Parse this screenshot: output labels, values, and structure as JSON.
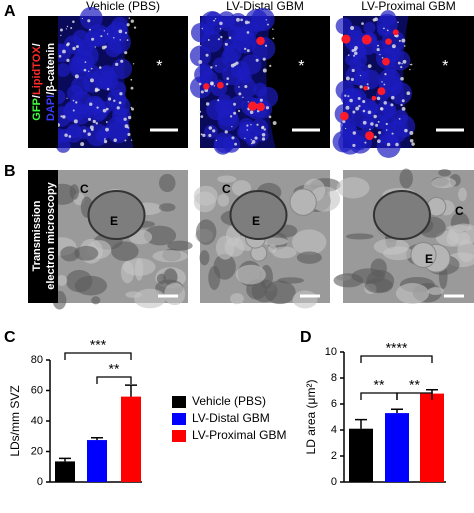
{
  "panels": {
    "A": {
      "letter": "A",
      "ylabel_lines": [
        [
          "GFP",
          "/",
          "LipidTOX",
          "/"
        ],
        [
          "DAPI",
          "/β-catenin"
        ]
      ],
      "headers": [
        "Vehicle (PBS)",
        "LV-Distal GBM",
        "LV-Proximal GBM"
      ],
      "marks": [
        "*",
        "*",
        "*"
      ]
    },
    "B": {
      "letter": "B",
      "ylabel_lines": [
        "Transmission",
        "electron microscopy"
      ],
      "images": [
        {
          "labels": [
            "C",
            "E"
          ]
        },
        {
          "labels": [
            "C",
            "E"
          ]
        },
        {
          "labels": [
            "E",
            "C"
          ]
        }
      ]
    }
  },
  "chart_data": [
    {
      "type": "bar",
      "letter": "C",
      "ylabel": "LDs/mm SVZ",
      "ylim": [
        0,
        80
      ],
      "yticks": [
        0,
        20,
        40,
        60,
        80
      ],
      "series": [
        {
          "name": "Vehicle (PBS)",
          "color": "#000000",
          "values": [
            13.5
          ],
          "errors": [
            2
          ]
        },
        {
          "name": "LV-Distal GBM",
          "color": "#0000ff",
          "values": [
            27.5
          ],
          "errors": [
            1.5
          ]
        },
        {
          "name": "LV-Proximal GBM",
          "color": "#ff0000",
          "values": [
            56
          ],
          "errors": [
            7.5
          ]
        }
      ],
      "annotations": [
        "***",
        "**"
      ]
    },
    {
      "type": "bar",
      "letter": "D",
      "ylabel": "LD area (μm²)",
      "ylim": [
        0,
        10
      ],
      "yticks": [
        0,
        2,
        4,
        6,
        8,
        10
      ],
      "series": [
        {
          "color": "#000000",
          "values": [
            4.1
          ],
          "errors": [
            0.7
          ]
        },
        {
          "color": "#0000ff",
          "values": [
            5.3
          ],
          "errors": [
            0.3
          ]
        },
        {
          "color": "#ff0000",
          "values": [
            6.8
          ],
          "errors": [
            0.3
          ]
        }
      ],
      "annotations": [
        "****",
        "**",
        "**"
      ]
    }
  ]
}
